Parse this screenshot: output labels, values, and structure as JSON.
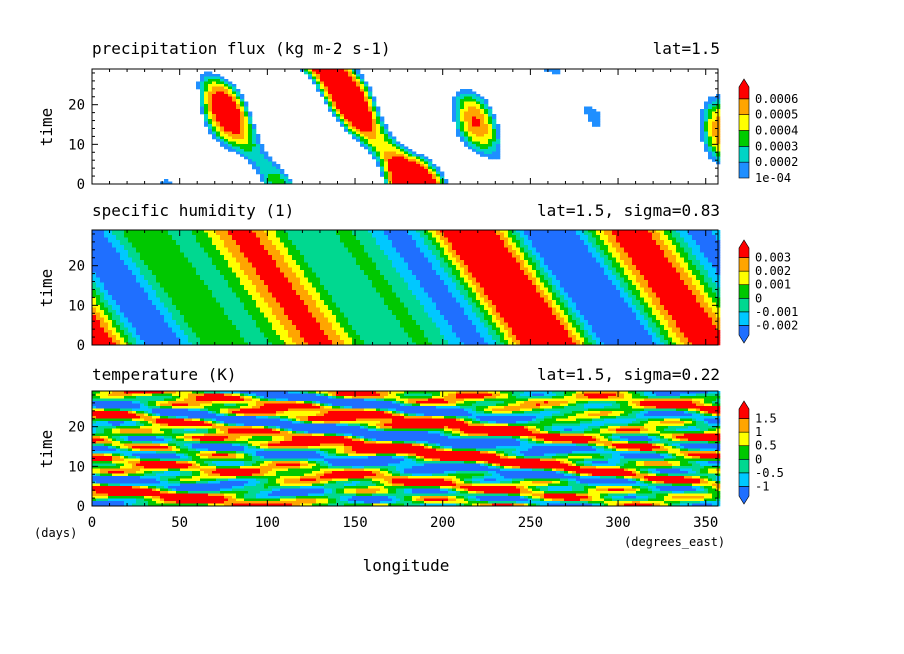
{
  "figure": {
    "xlabel": "longitude",
    "x_units": "(degrees_east)",
    "y_units": "(days)",
    "x_ticks": [
      0,
      50,
      100,
      150,
      200,
      250,
      300,
      350
    ],
    "xlim": [
      0,
      357
    ]
  },
  "chart_data": [
    {
      "type": "heatmap",
      "title": "precipitation flux (kg m-2 s-1)",
      "subtitle": "lat=1.5",
      "ylabel": "time",
      "xlabel": "longitude",
      "xlim": [
        0,
        357
      ],
      "ylim": [
        0,
        29
      ],
      "y_ticks": [
        0,
        10,
        20
      ],
      "colorbar": {
        "labels": [
          "1e-04",
          "0.0002",
          "0.0003",
          "0.0004",
          "0.0005",
          "0.0006"
        ],
        "colors": [
          "#1f8fff",
          "#00d4c6",
          "#00cc00",
          "#ffff00",
          "#ffa500",
          "#ff0000"
        ],
        "arrow_top": true,
        "arrow_bottom": false
      },
      "field": {
        "pattern": "precip",
        "below_color": "#ffffff"
      }
    },
    {
      "type": "heatmap",
      "title": "specific humidity (1)",
      "subtitle": "lat=1.5, sigma=0.83",
      "ylabel": "time",
      "xlabel": "longitude",
      "xlim": [
        0,
        357
      ],
      "ylim": [
        0,
        29
      ],
      "y_ticks": [
        0,
        10,
        20
      ],
      "colorbar": {
        "labels": [
          "-0.002",
          "-0.001",
          "0",
          "0.001",
          "0.002",
          "0.003"
        ],
        "colors": [
          "#1f6fff",
          "#00c8ff",
          "#00d890",
          "#00c800",
          "#ffff00",
          "#ffa500",
          "#ff0000"
        ],
        "arrow_top": true,
        "arrow_bottom": true
      },
      "field": {
        "pattern": "humidity"
      }
    },
    {
      "type": "heatmap",
      "title": "temperature (K)",
      "subtitle": "lat=1.5, sigma=0.22",
      "ylabel": "time",
      "xlabel": "longitude",
      "xlim": [
        0,
        357
      ],
      "ylim": [
        0,
        29
      ],
      "y_ticks": [
        0,
        10,
        20
      ],
      "colorbar": {
        "labels": [
          "-1",
          "-0.5",
          "0",
          "0.5",
          "1",
          "1.5"
        ],
        "colors": [
          "#1f6fff",
          "#00c8ff",
          "#00d890",
          "#00c800",
          "#ffff00",
          "#ffa500",
          "#ff0000"
        ],
        "arrow_top": true,
        "arrow_bottom": true
      },
      "field": {
        "pattern": "temperature"
      }
    }
  ]
}
